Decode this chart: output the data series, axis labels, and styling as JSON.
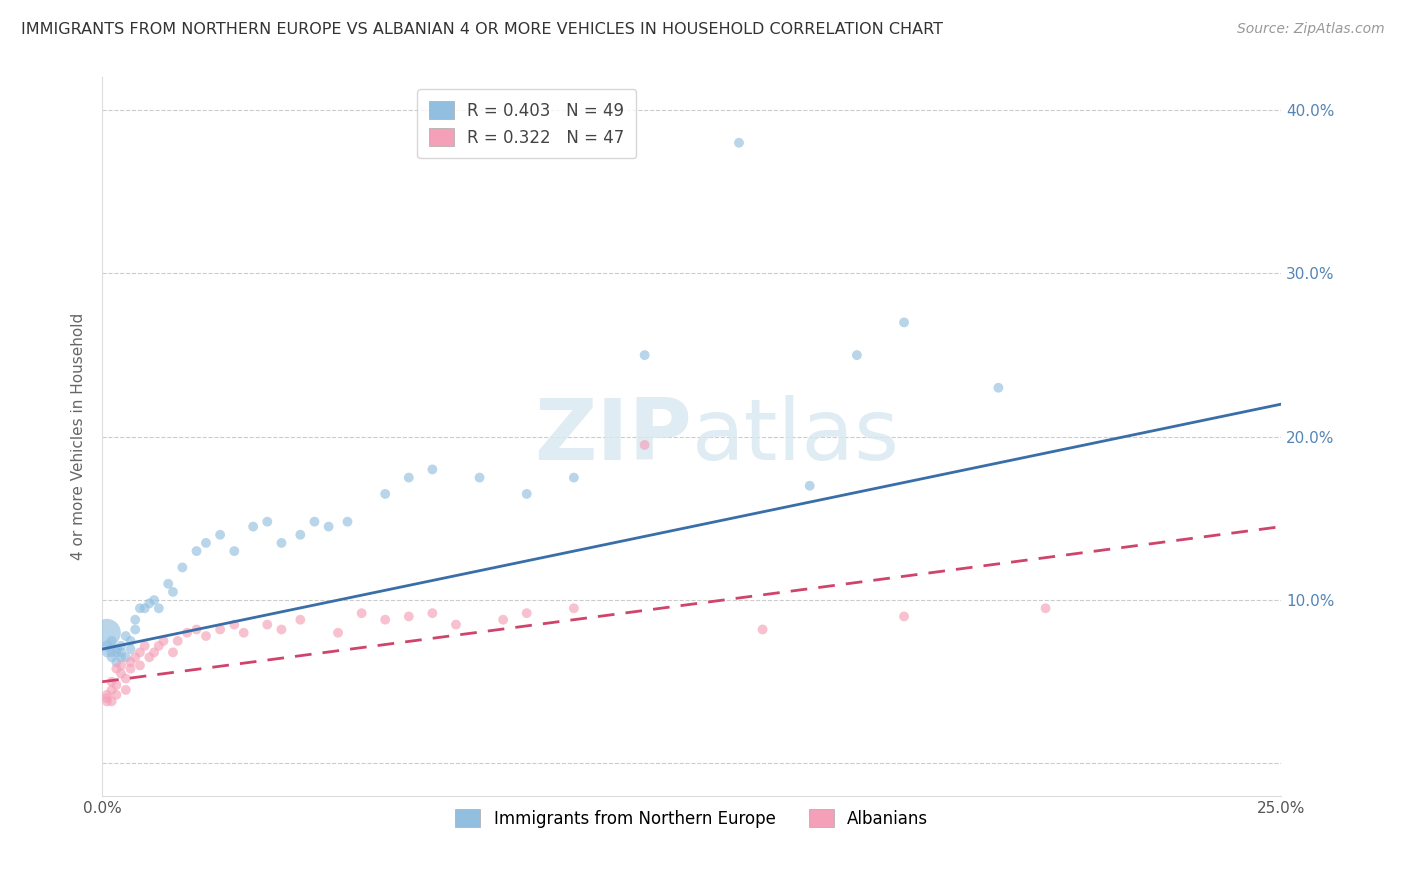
{
  "title": "IMMIGRANTS FROM NORTHERN EUROPE VS ALBANIAN 4 OR MORE VEHICLES IN HOUSEHOLD CORRELATION CHART",
  "source": "Source: ZipAtlas.com",
  "ylabel": "4 or more Vehicles in Household",
  "xlim": [
    0.0,
    0.25
  ],
  "ylim": [
    -0.02,
    0.42
  ],
  "series1_name": "Immigrants from Northern Europe",
  "series1_color": "#92bfdf",
  "series1_line_color": "#3a6ea8",
  "series1_R": 0.403,
  "series1_N": 49,
  "series2_name": "Albanians",
  "series2_color": "#f4a0b8",
  "series2_line_color": "#d0436a",
  "series2_R": 0.322,
  "series2_N": 47,
  "background_color": "#ffffff",
  "grid_color": "#cccccc",
  "right_axis_color": "#5585b5",
  "series1_x": [
    0.001,
    0.001,
    0.001,
    0.002,
    0.002,
    0.002,
    0.003,
    0.003,
    0.003,
    0.004,
    0.004,
    0.004,
    0.005,
    0.005,
    0.006,
    0.006,
    0.007,
    0.007,
    0.008,
    0.009,
    0.01,
    0.011,
    0.012,
    0.014,
    0.015,
    0.017,
    0.02,
    0.022,
    0.025,
    0.028,
    0.032,
    0.035,
    0.038,
    0.042,
    0.045,
    0.048,
    0.052,
    0.06,
    0.065,
    0.07,
    0.08,
    0.09,
    0.1,
    0.115,
    0.135,
    0.15,
    0.16,
    0.17,
    0.19
  ],
  "series1_y": [
    0.08,
    0.072,
    0.068,
    0.075,
    0.068,
    0.065,
    0.07,
    0.068,
    0.062,
    0.072,
    0.065,
    0.068,
    0.078,
    0.065,
    0.075,
    0.07,
    0.082,
    0.088,
    0.095,
    0.095,
    0.098,
    0.1,
    0.095,
    0.11,
    0.105,
    0.12,
    0.13,
    0.135,
    0.14,
    0.13,
    0.145,
    0.148,
    0.135,
    0.14,
    0.148,
    0.145,
    0.148,
    0.165,
    0.175,
    0.18,
    0.175,
    0.165,
    0.175,
    0.25,
    0.38,
    0.17,
    0.25,
    0.27,
    0.23
  ],
  "series1_size": [
    400,
    60,
    50,
    50,
    50,
    50,
    60,
    50,
    50,
    50,
    50,
    50,
    50,
    50,
    50,
    50,
    50,
    50,
    50,
    50,
    50,
    50,
    50,
    50,
    50,
    50,
    50,
    50,
    50,
    50,
    50,
    50,
    50,
    50,
    50,
    50,
    50,
    50,
    50,
    50,
    50,
    50,
    50,
    50,
    50,
    50,
    50,
    50,
    50
  ],
  "series2_x": [
    0.001,
    0.001,
    0.001,
    0.002,
    0.002,
    0.002,
    0.003,
    0.003,
    0.003,
    0.004,
    0.004,
    0.005,
    0.005,
    0.006,
    0.006,
    0.007,
    0.008,
    0.008,
    0.009,
    0.01,
    0.011,
    0.012,
    0.013,
    0.015,
    0.016,
    0.018,
    0.02,
    0.022,
    0.025,
    0.028,
    0.03,
    0.035,
    0.038,
    0.042,
    0.05,
    0.055,
    0.06,
    0.065,
    0.07,
    0.075,
    0.085,
    0.09,
    0.1,
    0.115,
    0.14,
    0.17,
    0.2
  ],
  "series2_y": [
    0.04,
    0.038,
    0.042,
    0.045,
    0.05,
    0.038,
    0.042,
    0.048,
    0.058,
    0.06,
    0.055,
    0.045,
    0.052,
    0.058,
    0.062,
    0.065,
    0.06,
    0.068,
    0.072,
    0.065,
    0.068,
    0.072,
    0.075,
    0.068,
    0.075,
    0.08,
    0.082,
    0.078,
    0.082,
    0.085,
    0.08,
    0.085,
    0.082,
    0.088,
    0.08,
    0.092,
    0.088,
    0.09,
    0.092,
    0.085,
    0.088,
    0.092,
    0.095,
    0.195,
    0.082,
    0.09,
    0.095
  ],
  "series2_size": [
    50,
    50,
    50,
    50,
    50,
    50,
    50,
    50,
    50,
    50,
    50,
    50,
    50,
    50,
    50,
    50,
    50,
    50,
    50,
    50,
    50,
    50,
    50,
    50,
    50,
    50,
    50,
    50,
    50,
    50,
    50,
    50,
    50,
    50,
    50,
    50,
    50,
    50,
    50,
    50,
    50,
    50,
    50,
    50,
    50,
    50,
    50
  ],
  "line1_x0": 0.0,
  "line1_y0": 0.07,
  "line1_x1": 0.25,
  "line1_y1": 0.22,
  "line2_x0": 0.0,
  "line2_y0": 0.05,
  "line2_x1": 0.25,
  "line2_y1": 0.145
}
